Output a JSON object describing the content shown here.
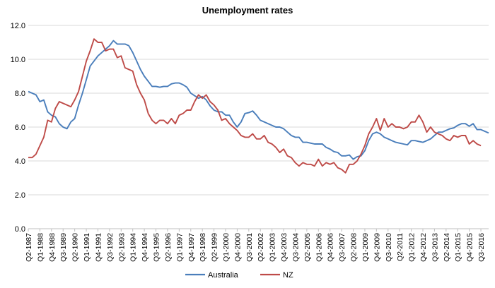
{
  "chart_data": {
    "type": "line",
    "title": "Unemployment rates",
    "xlabel": "",
    "ylabel": "",
    "ylim": [
      0,
      12
    ],
    "y_ticks": [
      "0.0",
      "2.0",
      "4.0",
      "6.0",
      "8.0",
      "10.0",
      "12.0"
    ],
    "y_tick_values": [
      0,
      2,
      4,
      6,
      8,
      10,
      12
    ],
    "grid": "horizontal",
    "legend": "bottom",
    "x_tick_labels": [
      "Q2-1987",
      "Q1-1988",
      "Q4-1988",
      "Q3-1989",
      "Q2-1990",
      "Q1-1991",
      "Q4-1991",
      "Q3-1992",
      "Q2-1993",
      "Q1-1994",
      "Q4-1994",
      "Q3-1995",
      "Q2-1996",
      "Q1-1997",
      "Q4-1997",
      "Q3-1998",
      "Q2-1999",
      "Q1-2000",
      "Q4-2000",
      "Q3-2001",
      "Q2-2002",
      "Q1-2003",
      "Q4-2003",
      "Q3-2004",
      "Q2-2005",
      "Q1-2006",
      "Q4-2006",
      "Q3-2007",
      "Q2-2008",
      "Q1-2009",
      "Q4-2009",
      "Q3-2010",
      "Q2-2011",
      "Q1-2012",
      "Q4-2012",
      "Q3-2013",
      "Q2-2014",
      "Q1-2015",
      "Q4-2015",
      "Q3-2016"
    ],
    "series": [
      {
        "name": "Australia",
        "color": "#4a7ebb",
        "values": [
          8.1,
          8.0,
          7.9,
          7.5,
          7.6,
          6.9,
          6.7,
          6.6,
          6.2,
          6.0,
          5.9,
          6.3,
          6.5,
          7.3,
          8.0,
          8.8,
          9.6,
          9.9,
          10.2,
          10.4,
          10.6,
          10.8,
          11.1,
          10.9,
          10.9,
          10.9,
          10.8,
          10.4,
          9.9,
          9.4,
          9.0,
          8.7,
          8.4,
          8.4,
          8.35,
          8.4,
          8.4,
          8.55,
          8.6,
          8.6,
          8.5,
          8.35,
          8.0,
          7.85,
          7.7,
          7.8,
          7.6,
          7.25,
          7.0,
          6.9,
          6.9,
          6.7,
          6.7,
          6.3,
          6.0,
          6.3,
          6.8,
          6.85,
          6.95,
          6.7,
          6.4,
          6.3,
          6.2,
          6.1,
          6.0,
          6.0,
          5.9,
          5.7,
          5.5,
          5.4,
          5.4,
          5.1,
          5.1,
          5.05,
          5.0,
          5.0,
          5.0,
          4.8,
          4.7,
          4.55,
          4.5,
          4.3,
          4.3,
          4.35,
          4.1,
          4.25,
          4.3,
          4.6,
          5.2,
          5.6,
          5.7,
          5.6,
          5.4,
          5.3,
          5.2,
          5.1,
          5.05,
          5.0,
          4.95,
          5.2,
          5.2,
          5.15,
          5.1,
          5.2,
          5.3,
          5.5,
          5.7,
          5.7,
          5.8,
          5.9,
          5.95,
          6.1,
          6.2,
          6.2,
          6.05,
          6.2,
          5.85,
          5.85,
          5.75,
          5.65
        ]
      },
      {
        "name": "NZ",
        "color": "#be4b48",
        "values": [
          4.2,
          4.2,
          4.4,
          4.9,
          5.4,
          6.4,
          6.3,
          7.1,
          7.5,
          7.4,
          7.3,
          7.2,
          7.6,
          8.1,
          9.0,
          9.9,
          10.5,
          11.2,
          11.0,
          11.0,
          10.5,
          10.6,
          10.6,
          10.1,
          10.2,
          9.5,
          9.4,
          9.3,
          8.5,
          8.0,
          7.6,
          6.8,
          6.4,
          6.2,
          6.4,
          6.4,
          6.2,
          6.5,
          6.2,
          6.7,
          6.8,
          7.0,
          7.0,
          7.5,
          7.9,
          7.7,
          7.9,
          7.5,
          7.3,
          7.0,
          6.4,
          6.5,
          6.2,
          6.0,
          5.8,
          5.5,
          5.4,
          5.4,
          5.6,
          5.3,
          5.3,
          5.5,
          5.1,
          5.0,
          4.8,
          4.5,
          4.7,
          4.3,
          4.2,
          3.9,
          3.7,
          3.9,
          3.8,
          3.8,
          3.7,
          4.1,
          3.7,
          3.9,
          3.8,
          3.9,
          3.6,
          3.5,
          3.3,
          3.8,
          3.8,
          4.0,
          4.4,
          4.9,
          5.6,
          6.0,
          6.5,
          5.8,
          6.5,
          6.0,
          6.2,
          6.0,
          6.0,
          5.9,
          6.0,
          6.3,
          6.3,
          6.7,
          6.3,
          5.7,
          6.0,
          5.7,
          5.6,
          5.5,
          5.3,
          5.2,
          5.5,
          5.4,
          5.5,
          5.5,
          5.0,
          5.2,
          5.0,
          4.9
        ]
      }
    ]
  }
}
